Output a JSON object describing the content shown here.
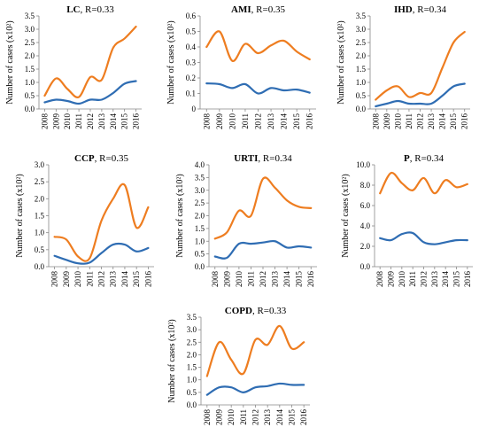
{
  "colors": {
    "orange": "#ee7d20",
    "blue": "#2f6db3",
    "axis": "#888888"
  },
  "chart_data": [
    {
      "type": "line",
      "title_bold": "LC",
      "title_rest": ", R=0.33",
      "ylabel": "Number of cases (x10²)",
      "ylim": [
        0,
        3.5
      ],
      "yticks": [
        "0.0",
        "0.5",
        "1.0",
        "1.5",
        "2.0",
        "2.5",
        "3.0",
        "3.5"
      ],
      "x": [
        "2008",
        "2009",
        "2010",
        "2011",
        "2012",
        "2013",
        "2014",
        "2015",
        "2016"
      ],
      "series": [
        {
          "color": "orange",
          "values": [
            0.5,
            1.15,
            0.75,
            0.45,
            1.2,
            1.1,
            2.3,
            2.65,
            3.1
          ]
        },
        {
          "color": "blue",
          "values": [
            0.25,
            0.35,
            0.3,
            0.2,
            0.35,
            0.35,
            0.6,
            0.95,
            1.05
          ]
        }
      ]
    },
    {
      "type": "line",
      "title_bold": "AMI",
      "title_rest": ", R=0.35",
      "ylabel": "Number of cases (x10²)",
      "ylim": [
        0,
        0.6
      ],
      "yticks": [
        "0",
        "0.1",
        "0.2",
        "0.3",
        "0.4",
        "0.5",
        "0.6"
      ],
      "x": [
        "2008",
        "2009",
        "2010",
        "2011",
        "2012",
        "2013",
        "2014",
        "2015",
        "2016"
      ],
      "series": [
        {
          "color": "orange",
          "values": [
            0.4,
            0.5,
            0.31,
            0.42,
            0.36,
            0.41,
            0.44,
            0.37,
            0.32
          ]
        },
        {
          "color": "blue",
          "values": [
            0.165,
            0.16,
            0.135,
            0.16,
            0.1,
            0.135,
            0.12,
            0.125,
            0.105
          ]
        }
      ]
    },
    {
      "type": "line",
      "title_bold": "IHD",
      "title_rest": ", R=0.34",
      "ylabel": "Number of cases (x10²)",
      "ylim": [
        0,
        3.5
      ],
      "yticks": [
        "0.0",
        "0.5",
        "1.0",
        "1.5",
        "2.0",
        "2.5",
        "3.0",
        "3.5"
      ],
      "x": [
        "2008",
        "2009",
        "2010",
        "2011",
        "2012",
        "2013",
        "2014",
        "2015",
        "2016"
      ],
      "series": [
        {
          "color": "orange",
          "values": [
            0.35,
            0.7,
            0.85,
            0.45,
            0.6,
            0.6,
            1.55,
            2.5,
            2.9
          ]
        },
        {
          "color": "blue",
          "values": [
            0.1,
            0.2,
            0.3,
            0.2,
            0.2,
            0.2,
            0.5,
            0.85,
            0.95
          ]
        }
      ]
    },
    {
      "type": "line",
      "title_bold": "CCP",
      "title_rest": ", R=0.35",
      "ylabel": "Number of cases (x10²)",
      "ylim": [
        0,
        3.0
      ],
      "yticks": [
        "0.0",
        "0.5",
        "1.0",
        "1.5",
        "2.0",
        "2.5",
        "3.0"
      ],
      "x": [
        "2008",
        "2009",
        "2010",
        "2011",
        "2012",
        "2013",
        "2014",
        "2015",
        "2016"
      ],
      "series": [
        {
          "color": "orange",
          "values": [
            0.88,
            0.8,
            0.3,
            0.25,
            1.35,
            2.0,
            2.4,
            1.15,
            1.75
          ]
        },
        {
          "color": "blue",
          "values": [
            0.32,
            0.2,
            0.1,
            0.12,
            0.4,
            0.65,
            0.65,
            0.45,
            0.55
          ]
        }
      ]
    },
    {
      "type": "line",
      "title_bold": "URTI",
      "title_rest": ", R=0.34",
      "ylabel": "Number of cases (x10²)",
      "ylim": [
        0,
        4.0
      ],
      "yticks": [
        "0.0",
        "0.5",
        "1.0",
        "1.5",
        "2.0",
        "2.5",
        "3.0",
        "3.5",
        "4.0"
      ],
      "x": [
        "2008",
        "2009",
        "2010",
        "2011",
        "2012",
        "2013",
        "2014",
        "2015",
        "2016"
      ],
      "series": [
        {
          "color": "orange",
          "values": [
            1.1,
            1.35,
            2.2,
            2.0,
            3.45,
            3.1,
            2.6,
            2.35,
            2.3
          ]
        },
        {
          "color": "blue",
          "values": [
            0.4,
            0.35,
            0.9,
            0.9,
            0.95,
            1.0,
            0.75,
            0.8,
            0.75
          ]
        }
      ]
    },
    {
      "type": "line",
      "title_bold": "P",
      "title_rest": ", R=0.34",
      "ylabel": "Number of cases (x10²)",
      "ylim": [
        0,
        10.0
      ],
      "yticks": [
        "0.0",
        "2.0",
        "4.0",
        "6.0",
        "8.0",
        "10.0"
      ],
      "x": [
        "2008",
        "2009",
        "2010",
        "2011",
        "2012",
        "2013",
        "2014",
        "2015",
        "2016"
      ],
      "series": [
        {
          "color": "orange",
          "values": [
            7.2,
            9.2,
            8.2,
            7.5,
            8.7,
            7.2,
            8.5,
            7.8,
            8.1
          ]
        },
        {
          "color": "blue",
          "values": [
            2.8,
            2.6,
            3.2,
            3.3,
            2.4,
            2.2,
            2.4,
            2.6,
            2.6
          ]
        }
      ]
    },
    {
      "type": "line",
      "title_bold": "COPD",
      "title_rest": ", R=0.33",
      "ylabel": "Number of cases (x10²)",
      "ylim": [
        0,
        3.5
      ],
      "yticks": [
        "0.0",
        "0.5",
        "1.0",
        "1.5",
        "2.0",
        "2.5",
        "3.0",
        "3.5"
      ],
      "x": [
        "2008",
        "2009",
        "2010",
        "2011",
        "2012",
        "2013",
        "2014",
        "2015",
        "2016"
      ],
      "series": [
        {
          "color": "orange",
          "values": [
            1.15,
            2.5,
            1.8,
            1.25,
            2.6,
            2.4,
            3.15,
            2.25,
            2.5
          ]
        },
        {
          "color": "blue",
          "values": [
            0.4,
            0.7,
            0.7,
            0.5,
            0.7,
            0.75,
            0.85,
            0.8,
            0.8
          ]
        }
      ]
    }
  ]
}
